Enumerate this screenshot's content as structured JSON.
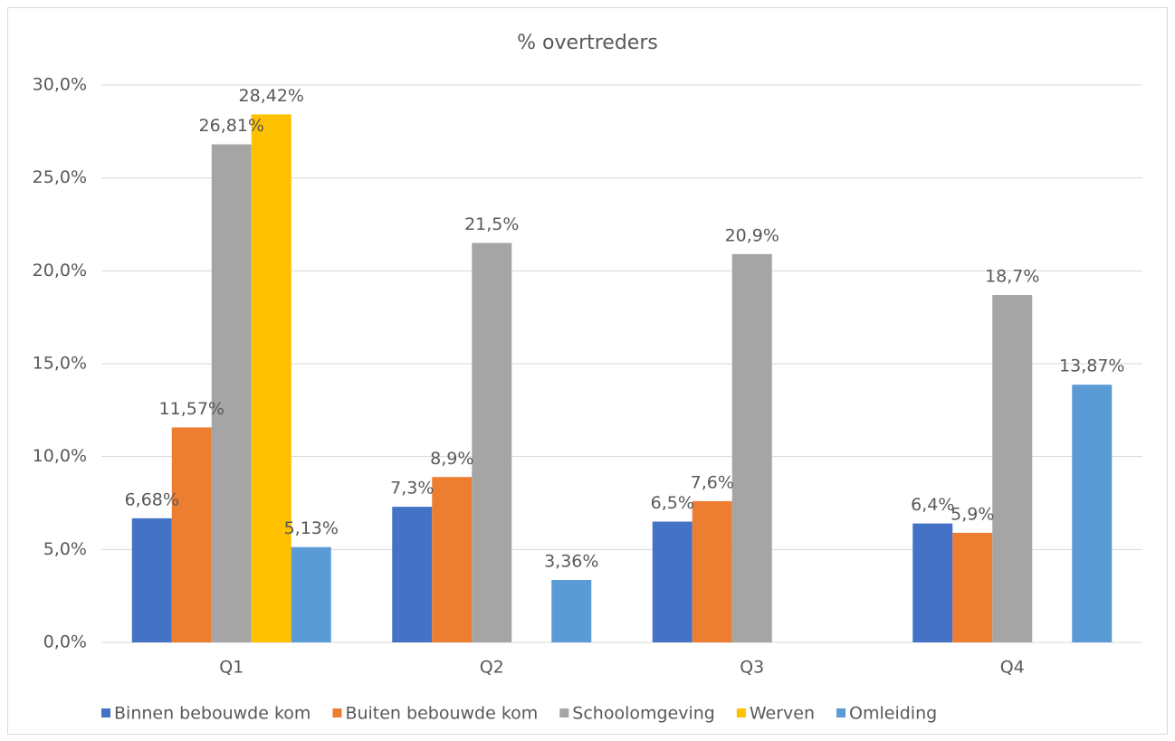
{
  "chart_data": {
    "type": "bar",
    "title": "% overtreders",
    "categories": [
      "Q1",
      "Q2",
      "Q3",
      "Q4"
    ],
    "series": [
      {
        "name": "Binnen bebouwde kom",
        "color": "#4472c4",
        "values": [
          6.68,
          7.3,
          6.5,
          6.4
        ],
        "value_labels": [
          "6,68%",
          "7,3%",
          "6,5%",
          "6,4%"
        ]
      },
      {
        "name": "Buiten bebouwde kom",
        "color": "#ed7d31",
        "values": [
          11.57,
          8.9,
          7.6,
          5.9
        ],
        "value_labels": [
          "11,57%",
          "8,9%",
          "7,6%",
          "5,9%"
        ]
      },
      {
        "name": "Schoolomgeving",
        "color": "#a5a5a5",
        "values": [
          26.81,
          21.5,
          20.9,
          18.7
        ],
        "value_labels": [
          "26,81%",
          "21,5%",
          "20,9%",
          "18,7%"
        ]
      },
      {
        "name": "Werven",
        "color": "#ffc000",
        "values": [
          28.42,
          null,
          null,
          null
        ],
        "value_labels": [
          "28,42%",
          null,
          null,
          null
        ]
      },
      {
        "name": "Omleiding",
        "color": "#5b9bd5",
        "values": [
          5.13,
          3.36,
          null,
          13.87
        ],
        "value_labels": [
          "5,13%",
          "3,36%",
          null,
          "13,87%"
        ]
      }
    ],
    "ylim": [
      0,
      30
    ],
    "yticks": [
      {
        "value": 0,
        "label": "0,0%"
      },
      {
        "value": 5,
        "label": "5,0%"
      },
      {
        "value": 10,
        "label": "10,0%"
      },
      {
        "value": 15,
        "label": "15,0%"
      },
      {
        "value": 20,
        "label": "20,0%"
      },
      {
        "value": 25,
        "label": "25,0%"
      },
      {
        "value": 30,
        "label": "30,0%"
      }
    ],
    "grid": true,
    "legend": "bottom"
  }
}
